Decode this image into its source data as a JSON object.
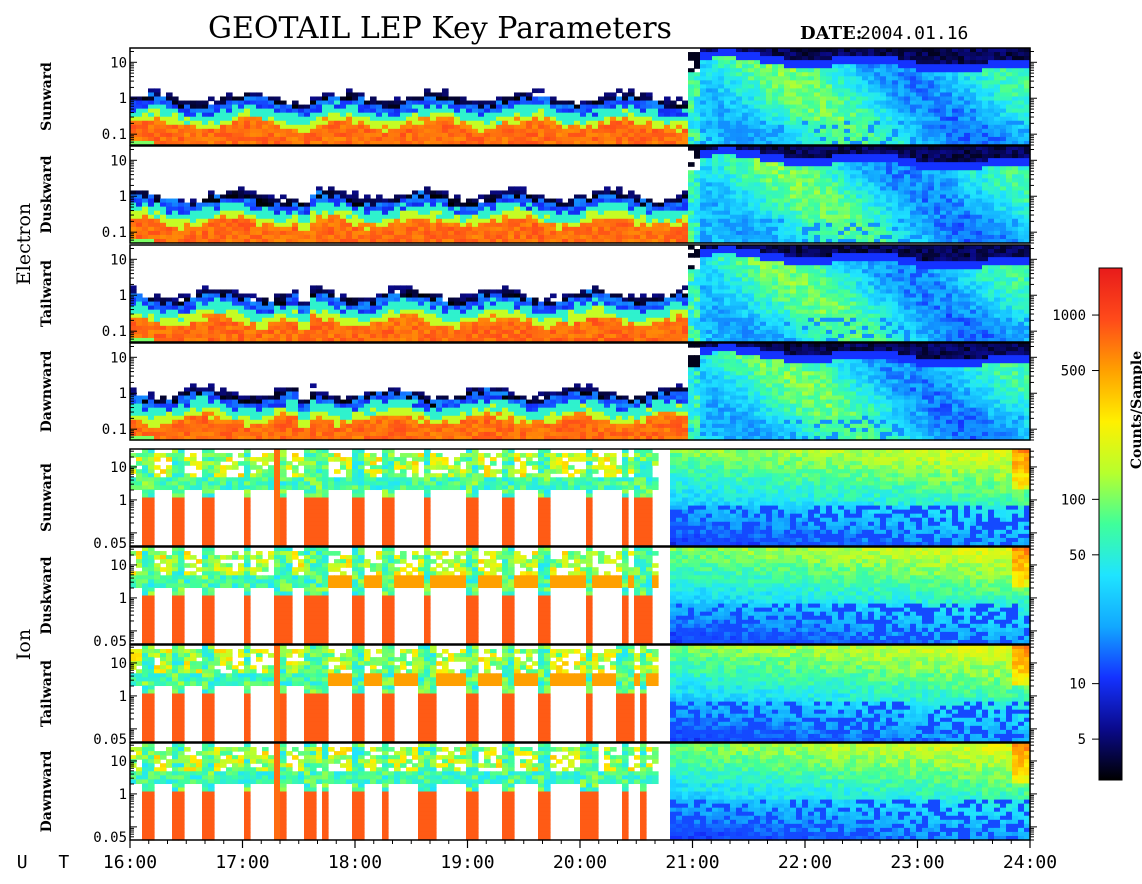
{
  "header": {
    "title": "GEOTAIL LEP Key Parameters",
    "date_label": "DATE:",
    "date_value": "2004.01.16"
  },
  "groups": [
    {
      "label": "Electron"
    },
    {
      "label": "Ion"
    }
  ],
  "colorbar": {
    "label": "Counts/Sample",
    "scale": "log",
    "range": [
      3,
      1800
    ],
    "ticks": [
      {
        "value": 1000,
        "label": "1000"
      },
      {
        "value": 500,
        "label": "500"
      },
      {
        "value": 100,
        "label": "100"
      },
      {
        "value": 50,
        "label": "50"
      },
      {
        "value": 10,
        "label": "10"
      },
      {
        "value": 5,
        "label": "5"
      }
    ],
    "colors": [
      "#000000",
      "#0a0a8c",
      "#1432ff",
      "#12a8ff",
      "#1fe4ff",
      "#3fff9a",
      "#b7ff2d",
      "#fff000",
      "#ffa000",
      "#ff4a1a",
      "#e81b1b"
    ]
  },
  "chart_data": {
    "type": "heatmap",
    "x": {
      "label": "U T",
      "range": [
        "16:00",
        "24:00"
      ],
      "ticks": [
        "16:00",
        "17:00",
        "18:00",
        "19:00",
        "20:00",
        "21:00",
        "22:00",
        "23:00",
        "24:00"
      ]
    },
    "panels": [
      {
        "group": "Electron",
        "label": "Sunward",
        "ylim": [
          0.05,
          25
        ],
        "yticks": [
          {
            "value": 10,
            "label": "10"
          },
          {
            "value": 1,
            "label": "1"
          },
          {
            "value": 0.1,
            "label": "0.1"
          }
        ]
      },
      {
        "group": "Electron",
        "label": "Duskward",
        "ylim": [
          0.05,
          25
        ],
        "yticks": [
          {
            "value": 10,
            "label": "10"
          },
          {
            "value": 1,
            "label": "1"
          },
          {
            "value": 0.1,
            "label": "0.1"
          }
        ]
      },
      {
        "group": "Electron",
        "label": "Tailward",
        "ylim": [
          0.05,
          25
        ],
        "yticks": [
          {
            "value": 10,
            "label": "10"
          },
          {
            "value": 1,
            "label": "1"
          },
          {
            "value": 0.1,
            "label": "0.1"
          }
        ]
      },
      {
        "group": "Electron",
        "label": "Dawnward",
        "ylim": [
          0.05,
          25
        ],
        "yticks": [
          {
            "value": 10,
            "label": "10"
          },
          {
            "value": 1,
            "label": "1"
          },
          {
            "value": 0.1,
            "label": "0.1"
          }
        ]
      },
      {
        "group": "Ion",
        "label": "Sunward",
        "ylim": [
          0.04,
          35
        ],
        "yticks": [
          {
            "value": 10,
            "label": "10"
          },
          {
            "value": 1,
            "label": "1"
          },
          {
            "value": 0.05,
            "label": "0.05"
          }
        ]
      },
      {
        "group": "Ion",
        "label": "Duskward",
        "ylim": [
          0.04,
          35
        ],
        "yticks": [
          {
            "value": 10,
            "label": "10"
          },
          {
            "value": 1,
            "label": "1"
          },
          {
            "value": 0.05,
            "label": "0.05"
          }
        ]
      },
      {
        "group": "Ion",
        "label": "Tailward",
        "ylim": [
          0.04,
          35
        ],
        "yticks": [
          {
            "value": 10,
            "label": "10"
          },
          {
            "value": 1,
            "label": "1"
          },
          {
            "value": 0.05,
            "label": "0.05"
          }
        ]
      },
      {
        "group": "Ion",
        "label": "Dawnward",
        "ylim": [
          0.04,
          35
        ],
        "yticks": [
          {
            "value": 10,
            "label": "10"
          },
          {
            "value": 1,
            "label": "1"
          },
          {
            "value": 0.05,
            "label": "0.05"
          }
        ]
      }
    ]
  }
}
